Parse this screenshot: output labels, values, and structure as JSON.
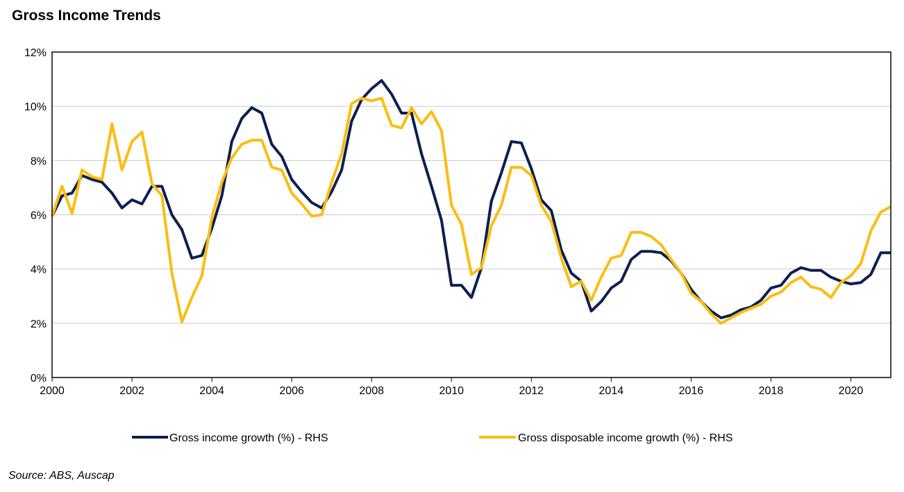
{
  "chart_data": {
    "type": "line",
    "title": "Gross Income Trends",
    "source": "Source: ABS, Auscap",
    "xlabel": "",
    "ylabel": "",
    "xlim": [
      2000,
      2021
    ],
    "ylim": [
      0,
      12
    ],
    "x_ticks": [
      "2000",
      "2002",
      "2004",
      "2006",
      "2008",
      "2010",
      "2012",
      "2014",
      "2016",
      "2018",
      "2020"
    ],
    "y_ticks": [
      "0%",
      "2%",
      "4%",
      "6%",
      "8%",
      "10%",
      "12%"
    ],
    "grid": "horizontal",
    "legend_position": "bottom",
    "x": [
      2000.0,
      2000.25,
      2000.5,
      2000.75,
      2001.0,
      2001.25,
      2001.5,
      2001.75,
      2002.0,
      2002.25,
      2002.5,
      2002.75,
      2003.0,
      2003.25,
      2003.5,
      2003.75,
      2004.0,
      2004.25,
      2004.5,
      2004.75,
      2005.0,
      2005.25,
      2005.5,
      2005.75,
      2006.0,
      2006.25,
      2006.5,
      2006.75,
      2007.0,
      2007.25,
      2007.5,
      2007.75,
      2008.0,
      2008.25,
      2008.5,
      2008.75,
      2009.0,
      2009.25,
      2009.5,
      2009.75,
      2010.0,
      2010.25,
      2010.5,
      2010.75,
      2011.0,
      2011.25,
      2011.5,
      2011.75,
      2012.0,
      2012.25,
      2012.5,
      2012.75,
      2013.0,
      2013.25,
      2013.5,
      2013.75,
      2014.0,
      2014.25,
      2014.5,
      2014.75,
      2015.0,
      2015.25,
      2015.5,
      2015.75,
      2016.0,
      2016.25,
      2016.5,
      2016.75,
      2017.0,
      2017.25,
      2017.5,
      2017.75,
      2018.0,
      2018.25,
      2018.5,
      2018.75,
      2019.0,
      2019.25,
      2019.5,
      2019.75,
      2020.0,
      2020.25,
      2020.5,
      2020.75,
      2021.0
    ],
    "series": [
      {
        "name": "Gross income growth (%) - RHS",
        "color": "#0d1f4f",
        "values": [
          5.95,
          6.7,
          6.8,
          7.45,
          7.3,
          7.2,
          6.8,
          6.25,
          6.55,
          6.4,
          7.05,
          7.05,
          6.0,
          5.45,
          4.4,
          4.5,
          5.5,
          6.7,
          8.7,
          9.55,
          9.95,
          9.75,
          8.6,
          8.15,
          7.3,
          6.85,
          6.45,
          6.25,
          6.85,
          7.65,
          9.45,
          10.25,
          10.65,
          10.95,
          10.45,
          9.75,
          9.75,
          8.25,
          7.05,
          5.8,
          3.4,
          3.4,
          2.95,
          4.05,
          6.5,
          7.55,
          8.7,
          8.65,
          7.7,
          6.55,
          6.15,
          4.7,
          3.85,
          3.55,
          2.45,
          2.8,
          3.3,
          3.55,
          4.35,
          4.65,
          4.65,
          4.6,
          4.3,
          3.85,
          3.25,
          2.8,
          2.45,
          2.2,
          2.3,
          2.5,
          2.6,
          2.85,
          3.3,
          3.4,
          3.85,
          4.05,
          3.95,
          3.95,
          3.7,
          3.55,
          3.45,
          3.5,
          3.8,
          4.6,
          4.6
        ]
      },
      {
        "name": "Gross disposable income growth (%) - RHS",
        "color": "#fbbd12",
        "values": [
          5.95,
          7.05,
          6.05,
          7.65,
          7.4,
          7.3,
          9.35,
          7.65,
          8.7,
          9.05,
          7.15,
          6.7,
          3.85,
          2.05,
          2.95,
          3.75,
          5.9,
          7.2,
          8.1,
          8.6,
          8.75,
          8.75,
          7.75,
          7.65,
          6.8,
          6.4,
          5.95,
          6.0,
          7.2,
          8.25,
          10.1,
          10.3,
          10.2,
          10.3,
          9.3,
          9.2,
          9.95,
          9.35,
          9.8,
          9.1,
          6.35,
          5.65,
          3.8,
          4.05,
          5.6,
          6.35,
          7.75,
          7.75,
          7.45,
          6.35,
          5.75,
          4.4,
          3.35,
          3.55,
          2.85,
          3.7,
          4.4,
          4.5,
          5.35,
          5.35,
          5.2,
          4.9,
          4.35,
          3.85,
          3.1,
          2.8,
          2.35,
          2.0,
          2.2,
          2.4,
          2.55,
          2.7,
          3.0,
          3.15,
          3.5,
          3.7,
          3.35,
          3.25,
          2.95,
          3.5,
          3.75,
          4.2,
          5.4,
          6.1,
          6.3
        ]
      }
    ]
  }
}
